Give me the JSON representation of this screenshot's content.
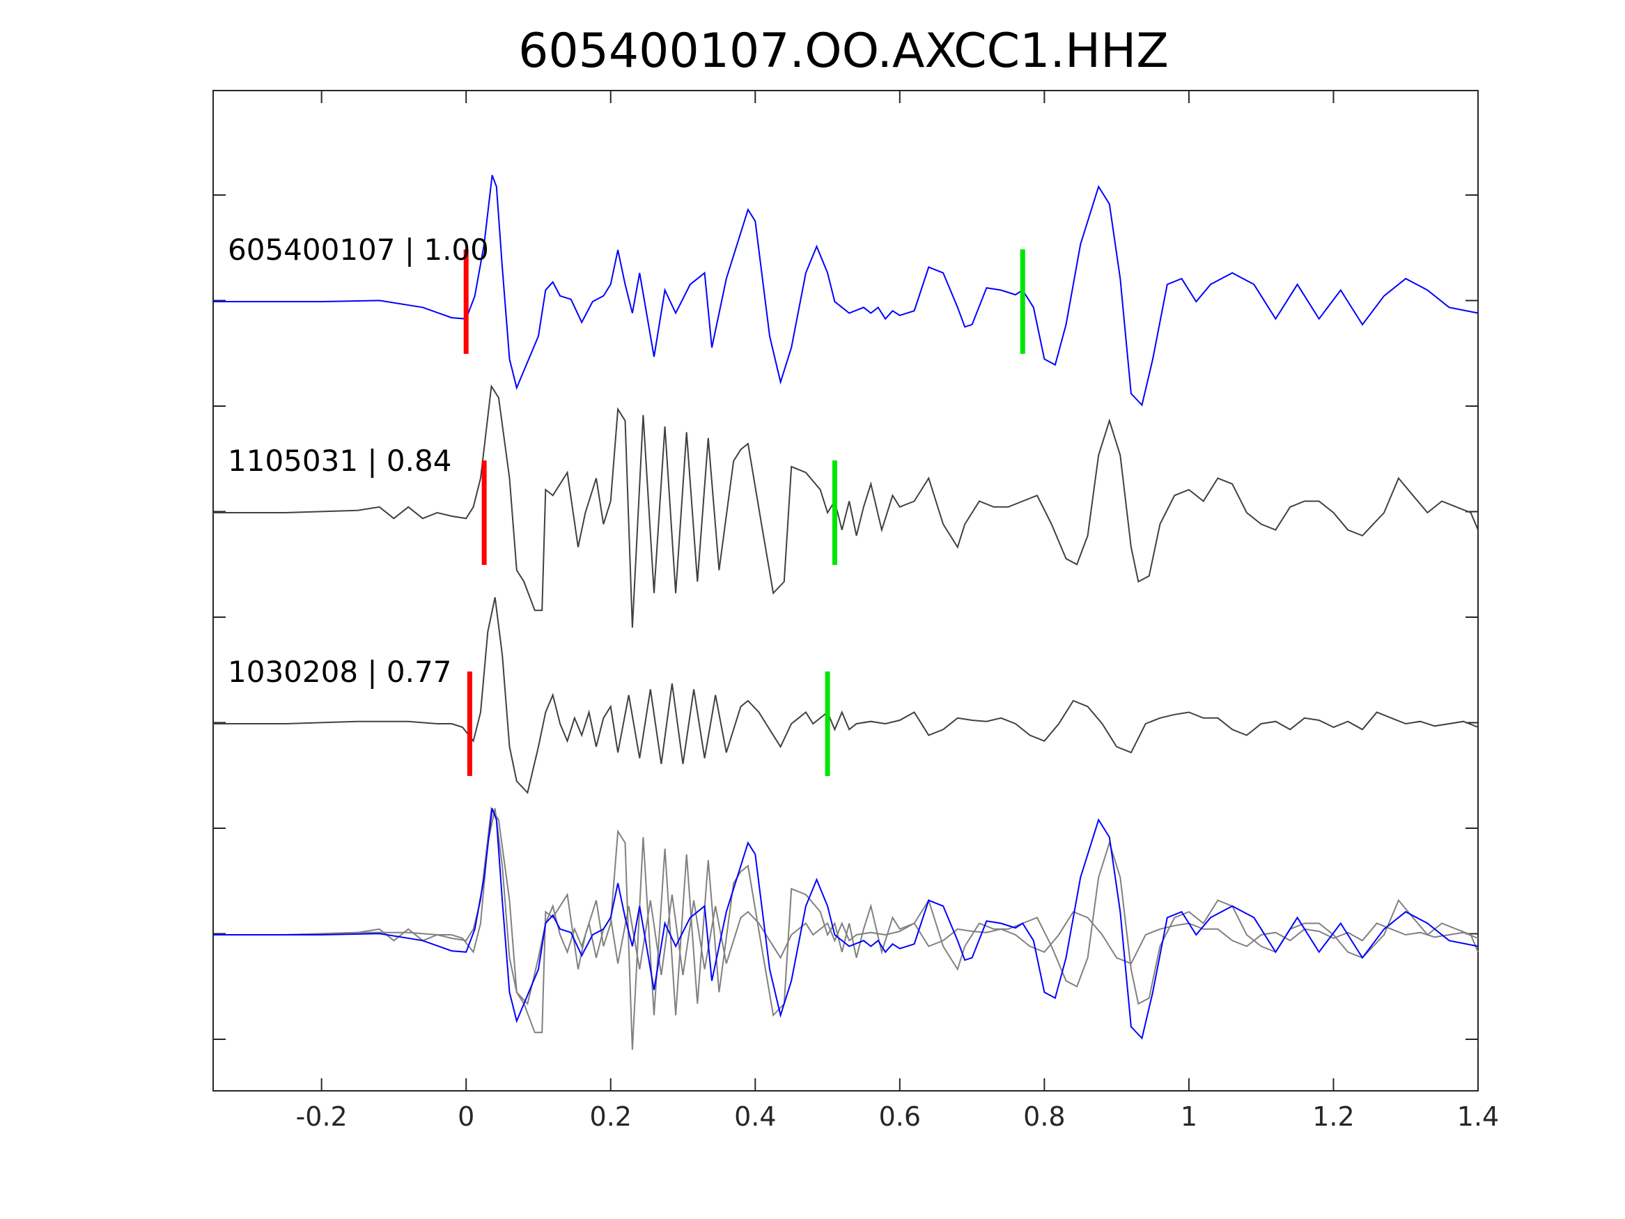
{
  "chart_data": {
    "type": "line",
    "title": "605400107.OO.AXCC1.HHZ",
    "xlabel": "",
    "ylabel": "",
    "xlim": [
      -0.35,
      1.4
    ],
    "xticks": [
      -0.2,
      0,
      0.2,
      0.4,
      0.6,
      0.8,
      1,
      1.2,
      1.4
    ],
    "xtick_labels": [
      "-0.2",
      "0",
      "0.2",
      "0.4",
      "0.6",
      "0.8",
      "1",
      "1.2",
      "1.4"
    ],
    "grid": false,
    "colors": {
      "reference_trace": "#0000ff",
      "similar_trace": "#404040",
      "overlay_gray": "#808080",
      "p_pick": "#ff0000",
      "s_pick": "#00e600",
      "axes": "#262626"
    },
    "traces": [
      {
        "label": "605400107 | 1.00",
        "color": "#0000ff",
        "p_pick": 0.0,
        "s_pick": 0.77,
        "points": [
          [
            -0.35,
            0
          ],
          [
            -0.2,
            0
          ],
          [
            -0.12,
            0.01
          ],
          [
            -0.06,
            -0.05
          ],
          [
            -0.02,
            -0.14
          ],
          [
            0.0,
            -0.15
          ],
          [
            0.012,
            0.05
          ],
          [
            0.025,
            0.5
          ],
          [
            0.036,
            1.1
          ],
          [
            0.042,
            1.0
          ],
          [
            0.05,
            0.3
          ],
          [
            0.06,
            -0.5
          ],
          [
            0.07,
            -0.75
          ],
          [
            0.08,
            -0.6
          ],
          [
            0.1,
            -0.3
          ],
          [
            0.11,
            0.1
          ],
          [
            0.12,
            0.17
          ],
          [
            0.13,
            0.05
          ],
          [
            0.145,
            0.02
          ],
          [
            0.16,
            -0.18
          ],
          [
            0.175,
            0.0
          ],
          [
            0.19,
            0.05
          ],
          [
            0.2,
            0.15
          ],
          [
            0.21,
            0.45
          ],
          [
            0.22,
            0.15
          ],
          [
            0.23,
            -0.1
          ],
          [
            0.24,
            0.25
          ],
          [
            0.26,
            -0.48
          ],
          [
            0.275,
            0.1
          ],
          [
            0.29,
            -0.1
          ],
          [
            0.31,
            0.15
          ],
          [
            0.33,
            0.25
          ],
          [
            0.34,
            -0.4
          ],
          [
            0.36,
            0.2
          ],
          [
            0.39,
            0.8
          ],
          [
            0.4,
            0.7
          ],
          [
            0.42,
            -0.3
          ],
          [
            0.435,
            -0.7
          ],
          [
            0.45,
            -0.4
          ],
          [
            0.47,
            0.25
          ],
          [
            0.485,
            0.48
          ],
          [
            0.5,
            0.25
          ],
          [
            0.51,
            0.0
          ],
          [
            0.53,
            -0.1
          ],
          [
            0.55,
            -0.05
          ],
          [
            0.56,
            -0.1
          ],
          [
            0.57,
            -0.05
          ],
          [
            0.58,
            -0.15
          ],
          [
            0.59,
            -0.08
          ],
          [
            0.6,
            -0.12
          ],
          [
            0.62,
            -0.08
          ],
          [
            0.64,
            0.3
          ],
          [
            0.66,
            0.25
          ],
          [
            0.68,
            -0.05
          ],
          [
            0.69,
            -0.22
          ],
          [
            0.7,
            -0.2
          ],
          [
            0.72,
            0.12
          ],
          [
            0.74,
            0.1
          ],
          [
            0.76,
            0.06
          ],
          [
            0.77,
            0.1
          ],
          [
            0.785,
            -0.05
          ],
          [
            0.8,
            -0.5
          ],
          [
            0.815,
            -0.55
          ],
          [
            0.83,
            -0.2
          ],
          [
            0.85,
            0.5
          ],
          [
            0.875,
            1.0
          ],
          [
            0.89,
            0.85
          ],
          [
            0.905,
            0.2
          ],
          [
            0.92,
            -0.8
          ],
          [
            0.935,
            -0.9
          ],
          [
            0.95,
            -0.5
          ],
          [
            0.97,
            0.15
          ],
          [
            0.99,
            0.2
          ],
          [
            1.01,
            0.0
          ],
          [
            1.03,
            0.15
          ],
          [
            1.06,
            0.25
          ],
          [
            1.09,
            0.15
          ],
          [
            1.12,
            -0.15
          ],
          [
            1.15,
            0.15
          ],
          [
            1.18,
            -0.15
          ],
          [
            1.21,
            0.1
          ],
          [
            1.24,
            -0.2
          ],
          [
            1.27,
            0.05
          ],
          [
            1.3,
            0.2
          ],
          [
            1.33,
            0.1
          ],
          [
            1.36,
            -0.05
          ],
          [
            1.4,
            -0.1
          ]
        ]
      },
      {
        "label": "1105031 | 0.84",
        "color": "#404040",
        "p_pick": 0.025,
        "s_pick": 0.51,
        "points": [
          [
            -0.35,
            0
          ],
          [
            -0.25,
            0.0
          ],
          [
            -0.15,
            0.02
          ],
          [
            -0.12,
            0.05
          ],
          [
            -0.1,
            -0.05
          ],
          [
            -0.08,
            0.05
          ],
          [
            -0.06,
            -0.05
          ],
          [
            -0.04,
            0.0
          ],
          [
            -0.02,
            -0.03
          ],
          [
            0.0,
            -0.05
          ],
          [
            0.01,
            0.05
          ],
          [
            0.02,
            0.3
          ],
          [
            0.035,
            1.1
          ],
          [
            0.045,
            1.0
          ],
          [
            0.06,
            0.3
          ],
          [
            0.07,
            -0.5
          ],
          [
            0.08,
            -0.6
          ],
          [
            0.095,
            -0.85
          ],
          [
            0.105,
            -0.85
          ],
          [
            0.11,
            0.2
          ],
          [
            0.12,
            0.15
          ],
          [
            0.13,
            0.25
          ],
          [
            0.14,
            0.35
          ],
          [
            0.155,
            -0.3
          ],
          [
            0.165,
            0.0
          ],
          [
            0.18,
            0.3
          ],
          [
            0.19,
            -0.1
          ],
          [
            0.2,
            0.1
          ],
          [
            0.21,
            0.9
          ],
          [
            0.22,
            0.8
          ],
          [
            0.23,
            -1.0
          ],
          [
            0.245,
            0.85
          ],
          [
            0.26,
            -0.7
          ],
          [
            0.275,
            0.75
          ],
          [
            0.29,
            -0.7
          ],
          [
            0.305,
            0.7
          ],
          [
            0.32,
            -0.6
          ],
          [
            0.335,
            0.65
          ],
          [
            0.35,
            -0.5
          ],
          [
            0.37,
            0.45
          ],
          [
            0.38,
            0.55
          ],
          [
            0.39,
            0.6
          ],
          [
            0.41,
            -0.15
          ],
          [
            0.425,
            -0.7
          ],
          [
            0.44,
            -0.6
          ],
          [
            0.45,
            0.4
          ],
          [
            0.47,
            0.35
          ],
          [
            0.49,
            0.2
          ],
          [
            0.5,
            0.0
          ],
          [
            0.51,
            0.1
          ],
          [
            0.52,
            -0.15
          ],
          [
            0.53,
            0.1
          ],
          [
            0.54,
            -0.2
          ],
          [
            0.55,
            0.05
          ],
          [
            0.56,
            0.25
          ],
          [
            0.575,
            -0.15
          ],
          [
            0.59,
            0.15
          ],
          [
            0.6,
            0.05
          ],
          [
            0.62,
            0.1
          ],
          [
            0.64,
            0.3
          ],
          [
            0.66,
            -0.1
          ],
          [
            0.68,
            -0.3
          ],
          [
            0.69,
            -0.1
          ],
          [
            0.71,
            0.1
          ],
          [
            0.73,
            0.05
          ],
          [
            0.75,
            0.05
          ],
          [
            0.77,
            0.1
          ],
          [
            0.79,
            0.15
          ],
          [
            0.81,
            -0.1
          ],
          [
            0.83,
            -0.4
          ],
          [
            0.845,
            -0.45
          ],
          [
            0.86,
            -0.2
          ],
          [
            0.875,
            0.5
          ],
          [
            0.89,
            0.8
          ],
          [
            0.905,
            0.5
          ],
          [
            0.92,
            -0.3
          ],
          [
            0.93,
            -0.6
          ],
          [
            0.945,
            -0.55
          ],
          [
            0.96,
            -0.1
          ],
          [
            0.98,
            0.15
          ],
          [
            1.0,
            0.2
          ],
          [
            1.02,
            0.1
          ],
          [
            1.04,
            0.3
          ],
          [
            1.06,
            0.25
          ],
          [
            1.08,
            0.0
          ],
          [
            1.1,
            -0.1
          ],
          [
            1.12,
            -0.15
          ],
          [
            1.14,
            0.05
          ],
          [
            1.16,
            0.1
          ],
          [
            1.18,
            0.1
          ],
          [
            1.2,
            0.0
          ],
          [
            1.22,
            -0.15
          ],
          [
            1.24,
            -0.2
          ],
          [
            1.27,
            0.0
          ],
          [
            1.29,
            0.3
          ],
          [
            1.31,
            0.15
          ],
          [
            1.33,
            0.0
          ],
          [
            1.35,
            0.1
          ],
          [
            1.37,
            0.05
          ],
          [
            1.39,
            0.0
          ],
          [
            1.4,
            -0.15
          ]
        ]
      },
      {
        "label": "1030208 | 0.77",
        "color": "#404040",
        "p_pick": 0.005,
        "s_pick": 0.5,
        "points": [
          [
            -0.35,
            0
          ],
          [
            -0.25,
            0.0
          ],
          [
            -0.15,
            0.02
          ],
          [
            -0.08,
            0.02
          ],
          [
            -0.04,
            0.0
          ],
          [
            -0.02,
            0.0
          ],
          [
            -0.005,
            -0.03
          ],
          [
            0.01,
            -0.15
          ],
          [
            0.02,
            0.1
          ],
          [
            0.03,
            0.8
          ],
          [
            0.04,
            1.1
          ],
          [
            0.05,
            0.6
          ],
          [
            0.06,
            -0.2
          ],
          [
            0.07,
            -0.5
          ],
          [
            0.085,
            -0.6
          ],
          [
            0.1,
            -0.2
          ],
          [
            0.11,
            0.1
          ],
          [
            0.12,
            0.25
          ],
          [
            0.13,
            0.0
          ],
          [
            0.14,
            -0.15
          ],
          [
            0.15,
            0.05
          ],
          [
            0.16,
            -0.1
          ],
          [
            0.17,
            0.1
          ],
          [
            0.18,
            -0.2
          ],
          [
            0.19,
            0.05
          ],
          [
            0.2,
            0.15
          ],
          [
            0.21,
            -0.25
          ],
          [
            0.225,
            0.25
          ],
          [
            0.24,
            -0.3
          ],
          [
            0.255,
            0.3
          ],
          [
            0.27,
            -0.35
          ],
          [
            0.285,
            0.35
          ],
          [
            0.3,
            -0.35
          ],
          [
            0.315,
            0.3
          ],
          [
            0.33,
            -0.3
          ],
          [
            0.345,
            0.25
          ],
          [
            0.36,
            -0.25
          ],
          [
            0.38,
            0.15
          ],
          [
            0.39,
            0.2
          ],
          [
            0.405,
            0.1
          ],
          [
            0.42,
            -0.05
          ],
          [
            0.435,
            -0.2
          ],
          [
            0.45,
            0.0
          ],
          [
            0.46,
            0.05
          ],
          [
            0.47,
            0.1
          ],
          [
            0.48,
            0.0
          ],
          [
            0.5,
            0.1
          ],
          [
            0.51,
            -0.05
          ],
          [
            0.52,
            0.1
          ],
          [
            0.53,
            -0.05
          ],
          [
            0.54,
            0.0
          ],
          [
            0.56,
            0.02
          ],
          [
            0.58,
            0.0
          ],
          [
            0.6,
            0.03
          ],
          [
            0.62,
            0.1
          ],
          [
            0.64,
            -0.1
          ],
          [
            0.66,
            -0.05
          ],
          [
            0.68,
            0.05
          ],
          [
            0.7,
            0.03
          ],
          [
            0.72,
            0.02
          ],
          [
            0.74,
            0.05
          ],
          [
            0.76,
            0.0
          ],
          [
            0.78,
            -0.1
          ],
          [
            0.8,
            -0.15
          ],
          [
            0.82,
            0.0
          ],
          [
            0.84,
            0.2
          ],
          [
            0.86,
            0.15
          ],
          [
            0.88,
            0.0
          ],
          [
            0.9,
            -0.2
          ],
          [
            0.92,
            -0.25
          ],
          [
            0.94,
            0.0
          ],
          [
            0.96,
            0.05
          ],
          [
            0.98,
            0.08
          ],
          [
            1.0,
            0.1
          ],
          [
            1.02,
            0.05
          ],
          [
            1.04,
            0.05
          ],
          [
            1.06,
            -0.05
          ],
          [
            1.08,
            -0.1
          ],
          [
            1.1,
            0.0
          ],
          [
            1.12,
            0.02
          ],
          [
            1.14,
            -0.05
          ],
          [
            1.16,
            0.05
          ],
          [
            1.18,
            0.03
          ],
          [
            1.2,
            -0.03
          ],
          [
            1.22,
            0.02
          ],
          [
            1.24,
            -0.05
          ],
          [
            1.26,
            0.1
          ],
          [
            1.28,
            0.05
          ],
          [
            1.3,
            0.0
          ],
          [
            1.32,
            0.02
          ],
          [
            1.34,
            -0.02
          ],
          [
            1.36,
            0.0
          ],
          [
            1.38,
            0.02
          ],
          [
            1.4,
            -0.03
          ]
        ]
      }
    ]
  }
}
